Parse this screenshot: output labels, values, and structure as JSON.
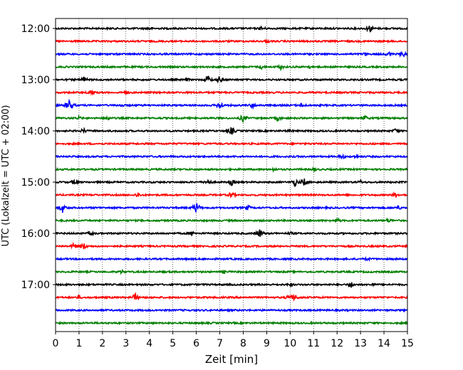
{
  "chart_data": {
    "type": "line",
    "title": "",
    "xlabel": "Zeit  [min]",
    "ylabel": "UTC (Lokalzeit = UTC + 02:00)",
    "xlim": [
      0,
      15
    ],
    "x_ticks": [
      0,
      1,
      2,
      3,
      4,
      5,
      6,
      7,
      8,
      9,
      10,
      11,
      12,
      13,
      14,
      15
    ],
    "x_tick_labels": [
      "0",
      "1",
      "2",
      "3",
      "4",
      "5",
      "6",
      "7",
      "8",
      "9",
      "10",
      "11",
      "12",
      "13",
      "14",
      "15"
    ],
    "x_grid": "dotted",
    "row_interval_minutes": 15,
    "y_tick_labels": [
      "12:00",
      "13:00",
      "14:00",
      "15:00",
      "16:00",
      "17:00"
    ],
    "y_tick_rows": [
      0,
      4,
      8,
      12,
      16,
      20
    ],
    "colors": [
      "#000000",
      "#ff0000",
      "#0000ff",
      "#007f00"
    ],
    "rows": [
      {
        "start": "12:00",
        "color": "#000000",
        "events": [
          [
            4.0,
            3
          ],
          [
            8.8,
            4
          ],
          [
            13.4,
            6
          ]
        ]
      },
      {
        "start": "12:15",
        "color": "#ff0000",
        "events": [
          [
            9.0,
            3
          ]
        ]
      },
      {
        "start": "12:30",
        "color": "#0000ff",
        "events": [
          [
            13.2,
            3
          ],
          [
            14.2,
            4
          ],
          [
            14.8,
            5
          ]
        ]
      },
      {
        "start": "12:45",
        "color": "#007f00",
        "events": [
          [
            8.8,
            4
          ],
          [
            9.6,
            4
          ],
          [
            10.8,
            3
          ]
        ]
      },
      {
        "start": "13:00",
        "color": "#000000",
        "events": [
          [
            1.2,
            5
          ],
          [
            5.6,
            3
          ],
          [
            6.5,
            6
          ],
          [
            7.0,
            5
          ]
        ]
      },
      {
        "start": "13:15",
        "color": "#ff0000",
        "events": [
          [
            1.5,
            5
          ],
          [
            3.0,
            4
          ]
        ]
      },
      {
        "start": "13:30",
        "color": "#0000ff",
        "events": [
          [
            0.6,
            9
          ],
          [
            2.8,
            3
          ],
          [
            7.0,
            6
          ],
          [
            8.4,
            4
          ],
          [
            10.5,
            4
          ]
        ]
      },
      {
        "start": "13:45",
        "color": "#007f00",
        "events": [
          [
            1.0,
            3
          ],
          [
            2.2,
            4
          ],
          [
            8.0,
            6
          ],
          [
            9.5,
            4
          ],
          [
            13.2,
            4
          ]
        ]
      },
      {
        "start": "14:00",
        "color": "#000000",
        "events": [
          [
            1.2,
            4
          ],
          [
            7.5,
            6
          ],
          [
            10.0,
            3
          ],
          [
            14.5,
            4
          ]
        ]
      },
      {
        "start": "14:15",
        "color": "#ff0000",
        "events": []
      },
      {
        "start": "14:30",
        "color": "#0000ff",
        "events": [
          [
            12.2,
            4
          ],
          [
            12.8,
            3
          ]
        ]
      },
      {
        "start": "14:45",
        "color": "#007f00",
        "events": [
          [
            9.3,
            3
          ],
          [
            11.0,
            3
          ]
        ]
      },
      {
        "start": "15:00",
        "color": "#000000",
        "events": [
          [
            0.8,
            4
          ],
          [
            6.5,
            5
          ],
          [
            7.5,
            5
          ],
          [
            10.2,
            6
          ],
          [
            10.6,
            6
          ],
          [
            13.0,
            3
          ]
        ]
      },
      {
        "start": "15:15",
        "color": "#ff0000",
        "events": [
          [
            3.5,
            4
          ],
          [
            7.5,
            5
          ],
          [
            14.5,
            4
          ]
        ]
      },
      {
        "start": "15:30",
        "color": "#0000ff",
        "events": [
          [
            0.3,
            7
          ],
          [
            6.0,
            8
          ],
          [
            8.2,
            4
          ],
          [
            14.6,
            4
          ]
        ]
      },
      {
        "start": "15:45",
        "color": "#007f00",
        "events": [
          [
            12.0,
            4
          ],
          [
            14.2,
            4
          ]
        ]
      },
      {
        "start": "16:00",
        "color": "#000000",
        "events": [
          [
            1.5,
            4
          ],
          [
            5.8,
            4
          ],
          [
            8.7,
            7
          ],
          [
            10.0,
            3
          ]
        ]
      },
      {
        "start": "16:15",
        "color": "#ff0000",
        "events": [
          [
            0.8,
            5
          ],
          [
            1.2,
            5
          ]
        ]
      },
      {
        "start": "16:30",
        "color": "#0000ff",
        "events": [
          [
            13.3,
            3
          ]
        ]
      },
      {
        "start": "16:45",
        "color": "#007f00",
        "events": [
          [
            2.8,
            3
          ],
          [
            7.2,
            3
          ]
        ]
      },
      {
        "start": "17:00",
        "color": "#000000",
        "events": [
          [
            10.0,
            3
          ],
          [
            12.6,
            5
          ],
          [
            13.5,
            3
          ]
        ]
      },
      {
        "start": "17:15",
        "color": "#ff0000",
        "events": [
          [
            1.0,
            3
          ],
          [
            3.4,
            6
          ],
          [
            10.0,
            6
          ],
          [
            10.2,
            5
          ]
        ]
      },
      {
        "start": "17:30",
        "color": "#0000ff",
        "events": []
      },
      {
        "start": "17:45",
        "color": "#007f00",
        "events": []
      }
    ]
  }
}
